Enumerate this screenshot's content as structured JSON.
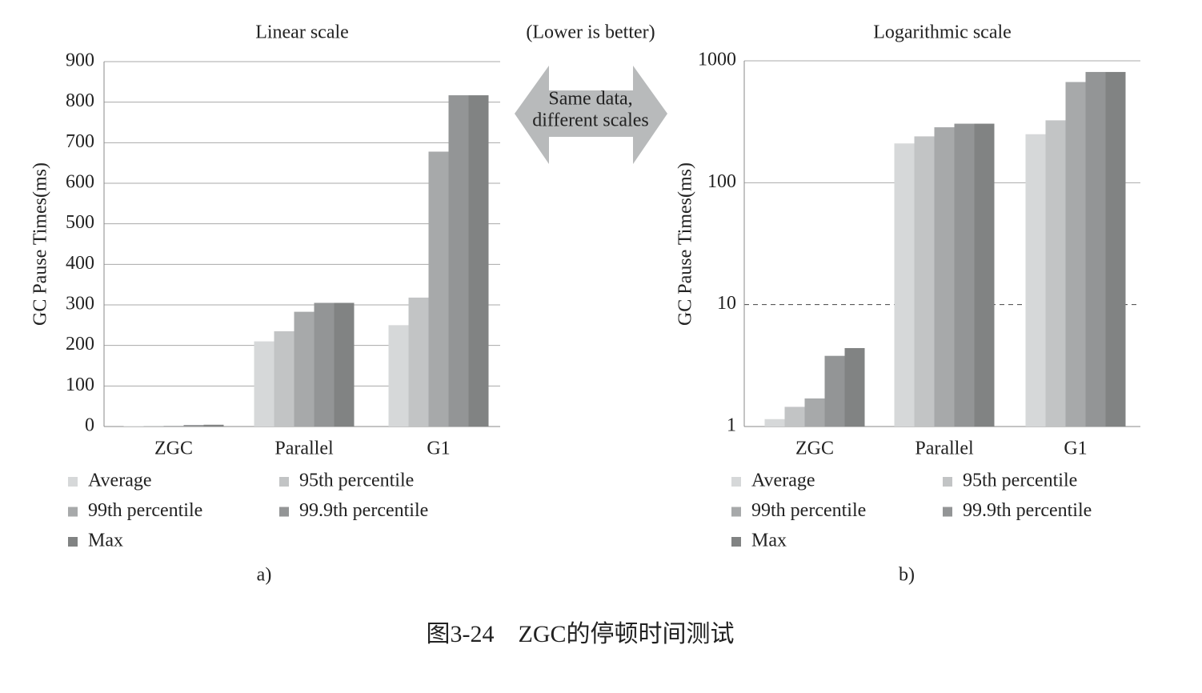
{
  "chart_data": [
    {
      "type": "bar",
      "title": "Linear scale",
      "y_label": "GC Pause Times(ms)",
      "label": "a)",
      "categories": [
        "ZGC",
        "Parallel",
        "G1"
      ],
      "series": [
        {
          "name": "Average",
          "color": "#d6d8d9",
          "values": [
            1.15,
            210,
            250
          ]
        },
        {
          "name": "95th percentile",
          "color": "#c2c4c5",
          "values": [
            1.45,
            235,
            318
          ]
        },
        {
          "name": "99th percentile",
          "color": "#a7a9aa",
          "values": [
            1.7,
            283,
            678
          ]
        },
        {
          "name": "99.9th percentile",
          "color": "#939596",
          "values": [
            3.8,
            305,
            817
          ]
        },
        {
          "name": "Max",
          "color": "#818383",
          "values": [
            4.4,
            305,
            817
          ]
        }
      ],
      "ylim": [
        0,
        900
      ],
      "yticks": [
        0,
        100,
        200,
        300,
        400,
        500,
        600,
        700,
        800,
        900
      ],
      "grid": true,
      "log_scale": false
    },
    {
      "type": "bar",
      "title": "Logarithmic scale",
      "y_label": "GC Pause Times(ms)",
      "label": "b)",
      "categories": [
        "ZGC",
        "Parallel",
        "G1"
      ],
      "series": [
        {
          "name": "Average",
          "color": "#d6d8d9",
          "values": [
            1.15,
            210,
            250
          ]
        },
        {
          "name": "95th percentile",
          "color": "#c2c4c5",
          "values": [
            1.45,
            240,
            325
          ]
        },
        {
          "name": "99th percentile",
          "color": "#a7a9aa",
          "values": [
            1.7,
            285,
            670
          ]
        },
        {
          "name": "99.9th percentile",
          "color": "#939596",
          "values": [
            3.8,
            305,
            810
          ]
        },
        {
          "name": "Max",
          "color": "#818383",
          "values": [
            4.4,
            305,
            810
          ]
        }
      ],
      "ylim": [
        1,
        1000
      ],
      "yticks": [
        1,
        10,
        100,
        1000
      ],
      "grid": true,
      "log_scale": true,
      "reference_line": 10
    }
  ],
  "annotation": "(Lower is better)",
  "arrow_label": [
    "Same data,",
    "different scales"
  ],
  "caption": "图3-24　ZGC的停顿时间测试"
}
